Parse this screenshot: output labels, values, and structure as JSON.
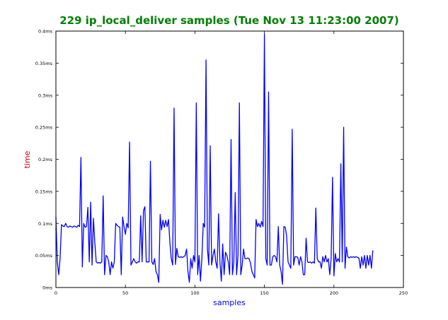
{
  "chart_data": {
    "type": "line",
    "title": "229 ip_local_deliver samples (Tue Nov 13 11:23:00 2007)",
    "xlabel": "samples",
    "ylabel": "time",
    "xlim": [
      0,
      250
    ],
    "ylim": [
      0,
      0.4
    ],
    "x_ticks": [
      0,
      50,
      100,
      150,
      200,
      250
    ],
    "y_ticks": [
      {
        "value": 0,
        "label": "0ms"
      },
      {
        "value": 0.05,
        "label": "0.05ms"
      },
      {
        "value": 0.1,
        "label": "0.1ms"
      },
      {
        "value": 0.15,
        "label": "0.15ms"
      },
      {
        "value": 0.2,
        "label": "0.2ms"
      },
      {
        "value": 0.25,
        "label": "0.25ms"
      },
      {
        "value": 0.3,
        "label": "0.3ms"
      },
      {
        "value": 0.35,
        "label": "0.35ms"
      },
      {
        "value": 0.4,
        "label": "0.4ms"
      }
    ],
    "grid": false,
    "series": [
      {
        "color": "#0000ff",
        "points": [
          [
            0,
            0.11
          ],
          [
            1,
            0.04
          ],
          [
            2,
            0.02
          ],
          [
            3,
            0.045
          ],
          [
            4,
            0.098
          ],
          [
            5,
            0.096
          ],
          [
            6,
            0.095
          ],
          [
            7,
            0.1
          ],
          [
            8,
            0.095
          ],
          [
            9,
            0.094
          ],
          [
            10,
            0.096
          ],
          [
            11,
            0.095
          ],
          [
            12,
            0.094
          ],
          [
            13,
            0.096
          ],
          [
            14,
            0.095
          ],
          [
            15,
            0.094
          ],
          [
            16,
            0.097
          ],
          [
            17,
            0.095
          ],
          [
            18,
            0.203
          ],
          [
            19,
            0.032
          ],
          [
            20,
            0.1
          ],
          [
            21,
            0.094
          ],
          [
            22,
            0.095
          ],
          [
            23,
            0.125
          ],
          [
            24,
            0.04
          ],
          [
            25,
            0.133
          ],
          [
            26,
            0.035
          ],
          [
            27,
            0.108
          ],
          [
            28,
            0.07
          ],
          [
            29,
            0.04
          ],
          [
            30,
            0.038
          ],
          [
            31,
            0.039
          ],
          [
            32,
            0.038
          ],
          [
            33,
            0.04
          ],
          [
            34,
            0.143
          ],
          [
            35,
            0.02
          ],
          [
            36,
            0.05
          ],
          [
            37,
            0.048
          ],
          [
            38,
            0.04
          ],
          [
            39,
            0.02
          ],
          [
            40,
            0.04
          ],
          [
            41,
            0.03
          ],
          [
            42,
            0.04
          ],
          [
            43,
            0.1
          ],
          [
            44,
            0.097
          ],
          [
            45,
            0.095
          ],
          [
            46,
            0.094
          ],
          [
            47,
            0.02
          ],
          [
            48,
            0.11
          ],
          [
            49,
            0.095
          ],
          [
            50,
            0.083
          ],
          [
            51,
            0.1
          ],
          [
            52,
            0.093
          ],
          [
            53,
            0.227
          ],
          [
            54,
            0.035
          ],
          [
            55,
            0.04
          ],
          [
            56,
            0.045
          ],
          [
            57,
            0.04
          ],
          [
            58,
            0.038
          ],
          [
            59,
            0.04
          ],
          [
            60,
            0.04
          ],
          [
            61,
            0.112
          ],
          [
            62,
            0.04
          ],
          [
            63,
            0.12
          ],
          [
            64,
            0.126
          ],
          [
            65,
            0.04
          ],
          [
            66,
            0.04
          ],
          [
            67,
            0.04
          ],
          [
            68,
            0.197
          ],
          [
            69,
            0.04
          ],
          [
            70,
            0.036
          ],
          [
            71,
            0.045
          ],
          [
            72,
            0.025
          ],
          [
            73,
            0.02
          ],
          [
            74,
            0.008
          ],
          [
            75,
            0.114
          ],
          [
            76,
            0.09
          ],
          [
            77,
            0.105
          ],
          [
            78,
            0.094
          ],
          [
            79,
            0.105
          ],
          [
            80,
            0.095
          ],
          [
            81,
            0.106
          ],
          [
            82,
            0.07
          ],
          [
            83,
            0.045
          ],
          [
            84,
            0.035
          ],
          [
            85,
            0.28
          ],
          [
            86,
            0.036
          ],
          [
            87,
            0.061
          ],
          [
            88,
            0.048
          ],
          [
            89,
            0.047
          ],
          [
            90,
            0.048
          ],
          [
            91,
            0.047
          ],
          [
            92,
            0.048
          ],
          [
            93,
            0.05
          ],
          [
            94,
            0.06
          ],
          [
            95,
            0.025
          ],
          [
            96,
            0.008
          ],
          [
            97,
            0.045
          ],
          [
            98,
            0.03
          ],
          [
            99,
            0.05
          ],
          [
            100,
            0.04
          ],
          [
            101,
            0.288
          ],
          [
            102,
            0.02
          ],
          [
            103,
            0.05
          ],
          [
            104,
            0.01
          ],
          [
            105,
            0.045
          ],
          [
            106,
            0.1
          ],
          [
            107,
            0.094
          ],
          [
            108,
            0.355
          ],
          [
            109,
            0.06
          ],
          [
            110,
            0.035
          ],
          [
            111,
            0.221
          ],
          [
            112,
            0.035
          ],
          [
            113,
            0.05
          ],
          [
            114,
            0.06
          ],
          [
            115,
            0.04
          ],
          [
            116,
            0.03
          ],
          [
            117,
            0.115
          ],
          [
            118,
            0.04
          ],
          [
            119,
            0.01
          ],
          [
            120,
            0.068
          ],
          [
            121,
            0.02
          ],
          [
            122,
            0.055
          ],
          [
            123,
            0.05
          ],
          [
            124,
            0.04
          ],
          [
            125,
            0.02
          ],
          [
            126,
            0.231
          ],
          [
            127,
            0.02
          ],
          [
            128,
            0.04
          ],
          [
            129,
            0.148
          ],
          [
            130,
            0.02
          ],
          [
            131,
            0.05
          ],
          [
            132,
            0.288
          ],
          [
            133,
            0.02
          ],
          [
            134,
            0.035
          ],
          [
            135,
            0.06
          ],
          [
            136,
            0.045
          ],
          [
            137,
            0.045
          ],
          [
            138,
            0.046
          ],
          [
            139,
            0.045
          ],
          [
            140,
            0.038
          ],
          [
            141,
            0.025
          ],
          [
            142,
            0.02
          ],
          [
            143,
            0.015
          ],
          [
            144,
            0.106
          ],
          [
            145,
            0.095
          ],
          [
            146,
            0.1
          ],
          [
            147,
            0.094
          ],
          [
            148,
            0.103
          ],
          [
            149,
            0.095
          ],
          [
            150,
            0.395
          ],
          [
            151,
            0.045
          ],
          [
            152,
            0.035
          ],
          [
            153,
            0.305
          ],
          [
            154,
            0.035
          ],
          [
            155,
            0.035
          ],
          [
            156,
            0.048
          ],
          [
            157,
            0.05
          ],
          [
            158,
            0.048
          ],
          [
            159,
            0.04
          ],
          [
            160,
            0.095
          ],
          [
            161,
            0.035
          ],
          [
            162,
            0.025
          ],
          [
            163,
            0.005
          ],
          [
            164,
            0.095
          ],
          [
            165,
            0.094
          ],
          [
            166,
            0.08
          ],
          [
            167,
            0.04
          ],
          [
            168,
            0.035
          ],
          [
            169,
            0.03
          ],
          [
            170,
            0.247
          ],
          [
            171,
            0.035
          ],
          [
            172,
            0.048
          ],
          [
            173,
            0.048
          ],
          [
            174,
            0.047
          ],
          [
            175,
            0.035
          ],
          [
            176,
            0.048
          ],
          [
            177,
            0.04
          ],
          [
            178,
            0.02
          ],
          [
            179,
            0.02
          ],
          [
            180,
            0.077
          ],
          [
            181,
            0.04
          ],
          [
            182,
            0.039
          ],
          [
            183,
            0.04
          ],
          [
            184,
            0.038
          ],
          [
            185,
            0.04
          ],
          [
            186,
            0.038
          ],
          [
            187,
            0.124
          ],
          [
            188,
            0.045
          ],
          [
            189,
            0.04
          ],
          [
            190,
            0.04
          ],
          [
            191,
            0.03
          ],
          [
            192,
            0.048
          ],
          [
            193,
            0.04
          ],
          [
            194,
            0.05
          ],
          [
            195,
            0.04
          ],
          [
            196,
            0.045
          ],
          [
            197,
            0.02
          ],
          [
            198,
            0.045
          ],
          [
            199,
            0.172
          ],
          [
            200,
            0.018
          ],
          [
            201,
            0.053
          ],
          [
            202,
            0.04
          ],
          [
            203,
            0.045
          ],
          [
            204,
            0.04
          ],
          [
            205,
            0.193
          ],
          [
            206,
            0.04
          ],
          [
            207,
            0.25
          ],
          [
            208,
            0.03
          ],
          [
            209,
            0.063
          ],
          [
            210,
            0.048
          ],
          [
            211,
            0.046
          ],
          [
            212,
            0.048
          ],
          [
            213,
            0.047
          ],
          [
            214,
            0.048
          ],
          [
            215,
            0.047
          ],
          [
            216,
            0.048
          ],
          [
            217,
            0.047
          ],
          [
            218,
            0.046
          ],
          [
            219,
            0.03
          ],
          [
            220,
            0.048
          ],
          [
            221,
            0.035
          ],
          [
            222,
            0.05
          ],
          [
            223,
            0.03
          ],
          [
            224,
            0.05
          ],
          [
            225,
            0.035
          ],
          [
            226,
            0.05
          ],
          [
            227,
            0.03
          ],
          [
            228,
            0.058
          ]
        ]
      }
    ]
  }
}
